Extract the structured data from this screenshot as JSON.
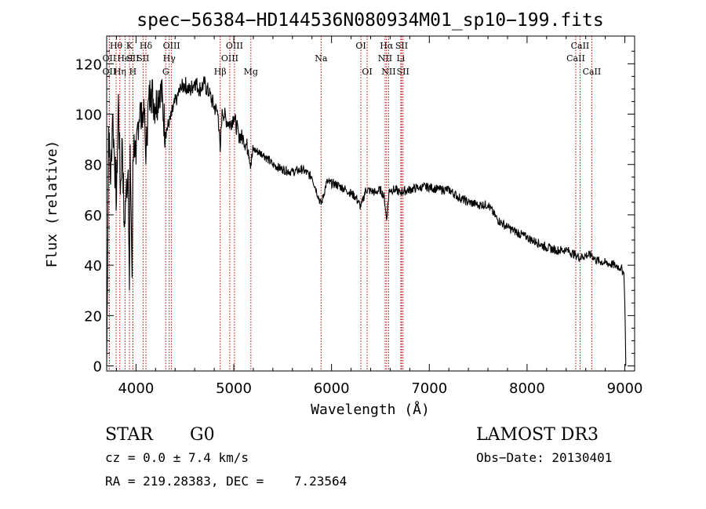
{
  "chart_data": {
    "type": "line",
    "title": "spec−56384−HD144536N080934M01_sp10−199.fits",
    "xlabel": "Wavelength (Å)",
    "ylabel": "Flux (relative)",
    "xlim": [
      3700,
      9100
    ],
    "ylim": [
      -2,
      131
    ],
    "xticks": [
      4000,
      5000,
      6000,
      7000,
      8000,
      9000
    ],
    "yticks": [
      0,
      20,
      40,
      60,
      80,
      100,
      120
    ],
    "grid": false,
    "series": [
      {
        "name": "flux",
        "x": [
          3700,
          3720,
          3740,
          3760,
          3780,
          3800,
          3820,
          3840,
          3860,
          3880,
          3900,
          3920,
          3933,
          3940,
          3960,
          3968,
          3980,
          4000,
          4020,
          4040,
          4060,
          4080,
          4101,
          4120,
          4150,
          4200,
          4250,
          4300,
          4340,
          4380,
          4420,
          4460,
          4500,
          4550,
          4600,
          4650,
          4700,
          4750,
          4800,
          4840,
          4861,
          4880,
          4920,
          4960,
          5000,
          5050,
          5100,
          5150,
          5175,
          5200,
          5300,
          5400,
          5500,
          5600,
          5700,
          5800,
          5893,
          5950,
          6050,
          6150,
          6250,
          6300,
          6350,
          6450,
          6500,
          6540,
          6563,
          6590,
          6650,
          6700,
          6800,
          6900,
          7000,
          7100,
          7200,
          7300,
          7400,
          7500,
          7600,
          7700,
          7800,
          7900,
          8000,
          8100,
          8200,
          8300,
          8400,
          8498,
          8542,
          8600,
          8662,
          8700,
          8800,
          8900,
          8960,
          8990,
          9000,
          9010
        ],
        "y": [
          0,
          95,
          72,
          100,
          82,
          65,
          108,
          68,
          90,
          55,
          70,
          78,
          30,
          88,
          35,
          82,
          92,
          80,
          97,
          103,
          95,
          106,
          80,
          100,
          110,
          103,
          112,
          93,
          96,
          102,
          107,
          110,
          112,
          109,
          113,
          110,
          112,
          108,
          103,
          100,
          85,
          102,
          98,
          96,
          99,
          92,
          90,
          86,
          80,
          86,
          84,
          80,
          78,
          77,
          78,
          75,
          64,
          73,
          72,
          70,
          67,
          63,
          70,
          69,
          70,
          67,
          58,
          70,
          70,
          69,
          70,
          71,
          71,
          70,
          70,
          67,
          65,
          64,
          64,
          58,
          55,
          53,
          51,
          49,
          47,
          46,
          46,
          44,
          43,
          44,
          44,
          42,
          41,
          40,
          39,
          37,
          25,
          0
        ]
      }
    ],
    "lines": [
      {
        "label": "Hθ",
        "x": 3797,
        "row": 1
      },
      {
        "label": "OII",
        "x": 3727,
        "row": 2
      },
      {
        "label": "OII",
        "x": 3727,
        "row": 3
      },
      {
        "label": "Hη",
        "x": 3835,
        "row": 3
      },
      {
        "label": "HeI",
        "x": 3889,
        "row": 2
      },
      {
        "label": "K",
        "x": 3933,
        "row": 1
      },
      {
        "label": "SII",
        "x": 3968,
        "row": 2
      },
      {
        "label": "H",
        "x": 3968,
        "row": 3
      },
      {
        "label": "Hδ",
        "x": 4101,
        "row": 1
      },
      {
        "label": "SII",
        "x": 4072,
        "row": 2
      },
      {
        "label": "OIII",
        "x": 4363,
        "row": 1
      },
      {
        "label": "Hγ",
        "x": 4340,
        "row": 2
      },
      {
        "label": "G",
        "x": 4304,
        "row": 3
      },
      {
        "label": "Hβ",
        "x": 4861,
        "row": 3
      },
      {
        "label": "OIII",
        "x": 4959,
        "row": 2
      },
      {
        "label": "OIII",
        "x": 5007,
        "row": 1
      },
      {
        "label": "Mg",
        "x": 5175,
        "row": 3
      },
      {
        "label": "Na",
        "x": 5893,
        "row": 2
      },
      {
        "label": "OI",
        "x": 6300,
        "row": 1
      },
      {
        "label": "OI",
        "x": 6364,
        "row": 3
      },
      {
        "label": "Hα",
        "x": 6563,
        "row": 1
      },
      {
        "label": "NII",
        "x": 6548,
        "row": 2
      },
      {
        "label": "NII",
        "x": 6584,
        "row": 3
      },
      {
        "label": "SII",
        "x": 6717,
        "row": 1
      },
      {
        "label": "Li",
        "x": 6708,
        "row": 2
      },
      {
        "label": "SII",
        "x": 6731,
        "row": 3
      },
      {
        "label": "CaII",
        "x": 8542,
        "row": 1
      },
      {
        "label": "CaII",
        "x": 8498,
        "row": 2
      },
      {
        "label": "CaII",
        "x": 8662,
        "row": 3
      }
    ]
  },
  "info": {
    "object_class": "STAR",
    "subclass": "G0",
    "survey": "LAMOST DR3",
    "cz": "cz = 0.0 ± 7.4 km/s",
    "obs_date": "Obs−Date: 20130401",
    "coords": "RA = 219.28383, DEC =    7.23564"
  },
  "colors": {
    "line": "#000000",
    "marker": "#cc0000",
    "background": "#ffffff"
  }
}
